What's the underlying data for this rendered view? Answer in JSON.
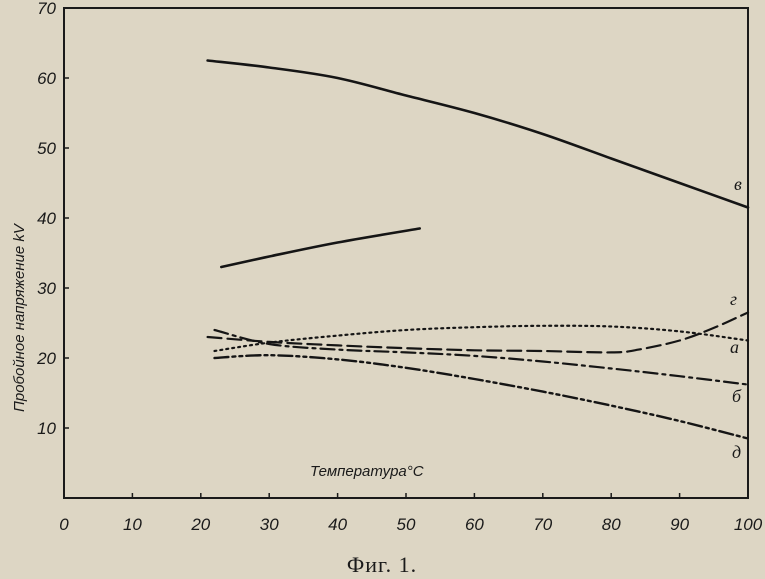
{
  "chart_data": {
    "type": "line",
    "ylabel": "Пробойное напряжение kV",
    "xlabel": "Температура°C",
    "xlim": [
      0,
      100
    ],
    "ylim": [
      0,
      70
    ],
    "x_ticks": [
      "0",
      "10",
      "20",
      "30",
      "40",
      "50",
      "60",
      "70",
      "80",
      "90",
      "100"
    ],
    "y_ticks": [
      "10",
      "20",
      "30",
      "40",
      "50",
      "60",
      "70"
    ],
    "grid": false,
    "caption": "Фиг. 1.",
    "series": [
      {
        "name": "в",
        "style": "solid",
        "x": [
          21,
          30,
          40,
          50,
          60,
          70,
          80,
          90,
          100
        ],
        "y": [
          62.5,
          61.5,
          60,
          57.5,
          55,
          52,
          48.5,
          45,
          41.5
        ]
      },
      {
        "name": "",
        "style": "solid",
        "x": [
          23,
          30,
          40,
          52
        ],
        "y": [
          33,
          34.5,
          36.5,
          38.5
        ]
      },
      {
        "name": "г",
        "style": "dotted",
        "x": [
          22,
          30,
          40,
          50,
          60,
          70,
          80,
          90,
          100
        ],
        "y": [
          21,
          22.2,
          23.2,
          24,
          24.4,
          24.6,
          24.5,
          23.8,
          22.5
        ]
      },
      {
        "name": "а",
        "style": "dashed",
        "x": [
          21,
          30,
          40,
          50,
          60,
          70,
          80,
          84,
          90,
          95,
          100
        ],
        "y": [
          23,
          22.3,
          21.8,
          21.4,
          21.1,
          21,
          20.8,
          21.2,
          22.5,
          24.3,
          26.5
        ]
      },
      {
        "name": "б",
        "style": "dash-dot",
        "x": [
          22,
          30,
          40,
          50,
          60,
          70,
          80,
          90,
          100
        ],
        "y": [
          24,
          22,
          21.2,
          20.8,
          20.3,
          19.5,
          18.5,
          17.4,
          16.2
        ]
      },
      {
        "name": "д",
        "style": "dash-dot-dot",
        "x": [
          22,
          30,
          40,
          50,
          60,
          70,
          80,
          90,
          100
        ],
        "y": [
          20,
          20.4,
          19.8,
          18.6,
          17,
          15.2,
          13.2,
          11,
          8.5
        ]
      }
    ]
  }
}
